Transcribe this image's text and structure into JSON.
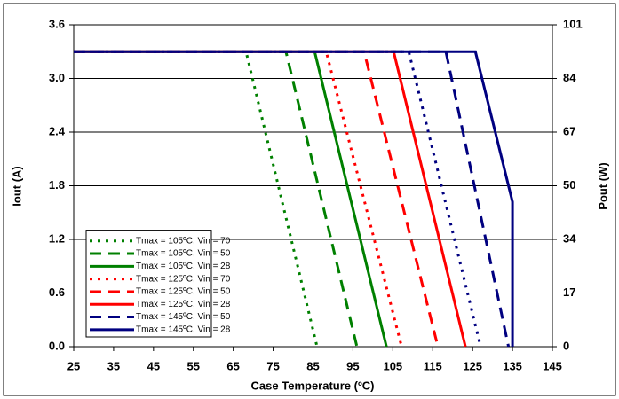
{
  "chart_data": {
    "type": "line",
    "xlabel": "Case Temperature (ºC)",
    "ylabel": "Iout (A)",
    "y2label": "Pout (W)",
    "xlim": [
      25,
      145
    ],
    "xticks": [
      25,
      35,
      45,
      55,
      65,
      75,
      85,
      95,
      105,
      115,
      125,
      135,
      145
    ],
    "ylim": [
      0,
      3.6
    ],
    "yticks": [
      {
        "value": 0,
        "label": "0.0"
      },
      0.6,
      1.2,
      1.8,
      2.4,
      {
        "value": 3,
        "label": "3.0"
      },
      3.6
    ],
    "y2lim": [
      0,
      100.8
    ],
    "y2ticks": [
      {
        "value": 0,
        "label": "0"
      },
      {
        "value": 16.8,
        "label": "17"
      },
      {
        "value": 33.6,
        "label": "34"
      },
      {
        "value": 50.4,
        "label": "50"
      },
      {
        "value": 67.2,
        "label": "67"
      },
      {
        "value": 84,
        "label": "84"
      },
      {
        "value": 100.8,
        "label": "101"
      }
    ],
    "grid": true,
    "legend": "lower left",
    "series": [
      {
        "name": "Tmax = 105ºC, Vin = 70",
        "color": "#008000",
        "dash": "dotted",
        "x": [
          25,
          68.2,
          86
        ],
        "values": [
          3.3,
          3.3,
          0
        ]
      },
      {
        "name": "Tmax = 105ºC, Vin = 50",
        "color": "#008000",
        "dash": "dashed",
        "x": [
          25,
          78.2,
          96
        ],
        "values": [
          3.3,
          3.3,
          0
        ]
      },
      {
        "name": "Tmax = 105ºC, Vin = 28",
        "color": "#008000",
        "dash": "solid",
        "x": [
          25,
          85.4,
          103.4
        ],
        "values": [
          3.3,
          3.3,
          0
        ]
      },
      {
        "name": "Tmax = 125ºC, Vin = 70",
        "color": "#ff0000",
        "dash": "dotted",
        "x": [
          25,
          88.3,
          107.2
        ],
        "values": [
          3.3,
          3.3,
          0
        ]
      },
      {
        "name": "Tmax = 125ºC, Vin = 50",
        "color": "#ff0000",
        "dash": "dashed",
        "x": [
          25,
          97.8,
          116.3
        ],
        "values": [
          3.3,
          3.3,
          0
        ]
      },
      {
        "name": "Tmax = 125ºC, Vin = 28",
        "color": "#ff0000",
        "dash": "solid",
        "x": [
          25,
          105.2,
          123.2
        ],
        "values": [
          3.3,
          3.3,
          0
        ]
      },
      {
        "color": "#000080",
        "dash": "dotted",
        "x": [
          25,
          109,
          127
        ],
        "values": [
          3.3,
          3.3,
          0
        ]
      },
      {
        "name": "Tmax = 145ºC, Vin = 50",
        "color": "#000080",
        "dash": "dashed",
        "x": [
          25,
          118.3,
          134
        ],
        "values": [
          3.3,
          3.3,
          0
        ]
      },
      {
        "name": "Tmax = 145ºC, Vin = 28",
        "color": "#000080",
        "dash": "solid",
        "x": [
          25,
          125.7,
          135,
          135
        ],
        "values": [
          3.3,
          3.3,
          1.62,
          0
        ]
      }
    ]
  }
}
